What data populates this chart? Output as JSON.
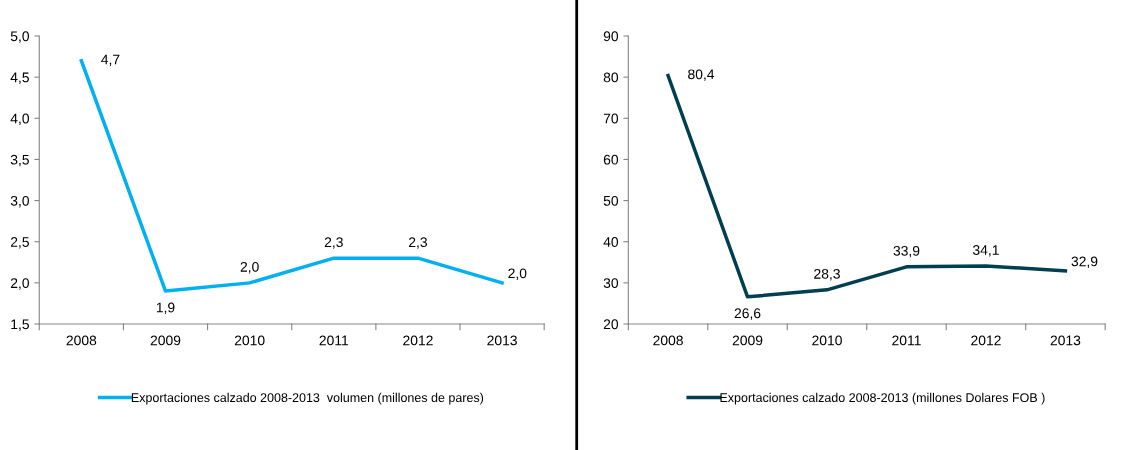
{
  "chart_data": [
    {
      "type": "line",
      "categories": [
        "2008",
        "2009",
        "2010",
        "2011",
        "2012",
        "2013"
      ],
      "series": [
        {
          "name": "Exportaciones calzado 2008-2013  volumen (millones de pares)",
          "color": "#00b0f0",
          "values": [
            4.7,
            1.9,
            2.0,
            2.3,
            2.3,
            2.0
          ],
          "value_labels": [
            "4,7",
            "1,9",
            "2,0",
            "2,3",
            "2,3",
            "2,0"
          ]
        }
      ],
      "ylim": [
        1.5,
        5.0
      ],
      "yticks": [
        {
          "value": 1.5,
          "label": "1,5"
        },
        {
          "value": 2.0,
          "label": "2,0"
        },
        {
          "value": 2.5,
          "label": "2,5"
        },
        {
          "value": 3.0,
          "label": "3,0"
        },
        {
          "value": 3.5,
          "label": "3,5"
        },
        {
          "value": 4.0,
          "label": "4,0"
        },
        {
          "value": 4.5,
          "label": "4,5"
        },
        {
          "value": 5.0,
          "label": "5,0"
        }
      ],
      "grid": false,
      "legend": "bottom",
      "marker": "none",
      "line_style": "solid"
    },
    {
      "type": "line",
      "categories": [
        "2008",
        "2009",
        "2010",
        "2011",
        "2012",
        "2013"
      ],
      "series": [
        {
          "name": "Exportaciones calzado 2008-2013 (millones Dolares FOB )",
          "color": "#003f4f",
          "values": [
            80.4,
            26.6,
            28.3,
            33.9,
            34.1,
            32.9
          ],
          "value_labels": [
            "80,4",
            "26,6",
            "28,3",
            "33,9",
            "34,1",
            "32,9"
          ]
        }
      ],
      "ylim": [
        20,
        90
      ],
      "yticks": [
        20,
        30,
        40,
        50,
        60,
        70,
        80,
        90
      ],
      "grid": false,
      "legend": "bottom",
      "marker": "none",
      "line_style": "solid"
    }
  ]
}
